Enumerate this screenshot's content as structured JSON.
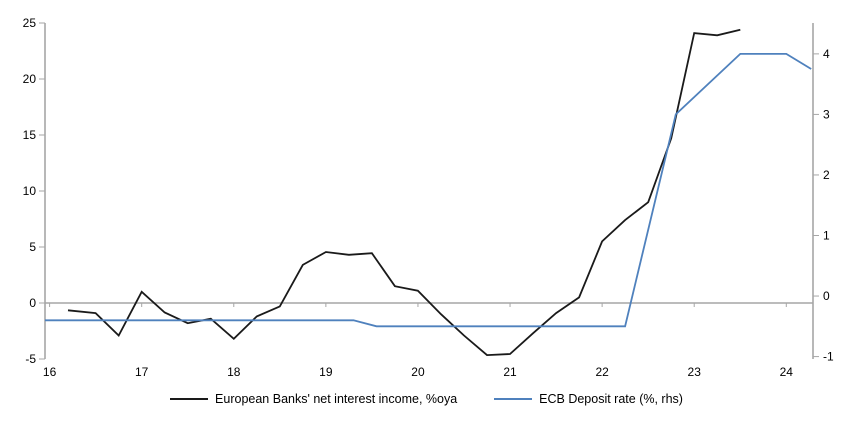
{
  "chart": {
    "legend": [
      {
        "label": "European Banks' net interest income, %oya"
      },
      {
        "label": "ECB Deposit rate (%, rhs)"
      }
    ]
  },
  "chart_data": {
    "type": "line",
    "title": "",
    "xlabel": "",
    "ylabel_left": "",
    "ylabel_right": "",
    "grid": "zero-line-only",
    "legend_position": "bottom-center",
    "axis_color": "#a6a6a6",
    "zero_line": true,
    "x_axis": {
      "min": 15.95,
      "max": 24.29,
      "ticks": [
        16,
        17,
        18,
        19,
        20,
        21,
        22,
        23,
        24
      ],
      "tick_labels": [
        "16",
        "17",
        "18",
        "19",
        "20",
        "21",
        "22",
        "23",
        "24"
      ]
    },
    "left_axis": {
      "min": -5,
      "max": 25,
      "ticks": [
        25,
        20,
        15,
        10,
        5,
        0,
        -5
      ]
    },
    "right_axis": {
      "min": -1.04,
      "max": 4.51,
      "ticks": [
        4,
        3,
        2,
        1,
        0,
        -1
      ]
    },
    "series": [
      {
        "name": "European Banks' net interest income, %oya",
        "axis": "left",
        "color": "#1a1a1a",
        "stroke_width": 1.8,
        "points": [
          [
            16.2,
            -0.65
          ],
          [
            16.5,
            -0.9
          ],
          [
            16.75,
            -2.9
          ],
          [
            17.0,
            1.0
          ],
          [
            17.25,
            -0.85
          ],
          [
            17.5,
            -1.8
          ],
          [
            17.75,
            -1.4
          ],
          [
            18.0,
            -3.2
          ],
          [
            18.25,
            -1.2
          ],
          [
            18.5,
            -0.3
          ],
          [
            18.75,
            3.4
          ],
          [
            19.0,
            4.55
          ],
          [
            19.25,
            4.3
          ],
          [
            19.5,
            4.45
          ],
          [
            19.75,
            1.5
          ],
          [
            20.0,
            1.1
          ],
          [
            20.25,
            -1.0
          ],
          [
            20.5,
            -2.9
          ],
          [
            20.75,
            -4.65
          ],
          [
            21.0,
            -4.55
          ],
          [
            21.25,
            -2.7
          ],
          [
            21.5,
            -0.9
          ],
          [
            21.75,
            0.5
          ],
          [
            22.0,
            5.5
          ],
          [
            22.25,
            7.4
          ],
          [
            22.5,
            9.0
          ],
          [
            22.75,
            14.7
          ],
          [
            23.0,
            24.1
          ],
          [
            23.25,
            23.9
          ],
          [
            23.5,
            24.4
          ]
        ]
      },
      {
        "name": "ECB Deposit rate (%, rhs)",
        "axis": "right",
        "color": "#4f81bd",
        "stroke_width": 1.8,
        "points": [
          [
            15.95,
            -0.4
          ],
          [
            19.3,
            -0.4
          ],
          [
            19.55,
            -0.5
          ],
          [
            22.25,
            -0.5
          ],
          [
            22.8,
            3.0
          ],
          [
            23.5,
            4.0
          ],
          [
            24.0,
            4.0
          ],
          [
            24.27,
            3.75
          ]
        ]
      }
    ]
  }
}
